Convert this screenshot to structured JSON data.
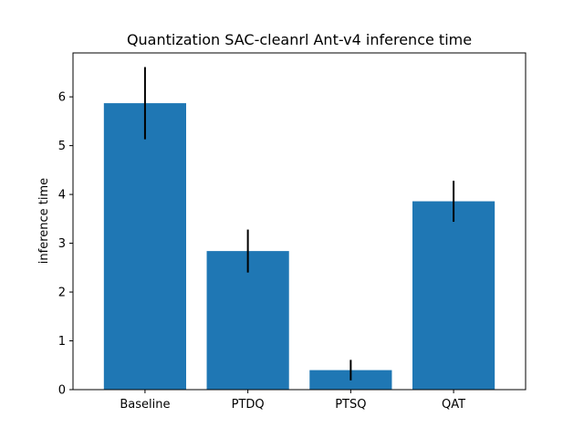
{
  "chart_data": {
    "type": "bar",
    "title": "Quantization SAC-cleanrl Ant-v4 inference time",
    "xlabel": "",
    "ylabel": "inference time",
    "categories": [
      "Baseline",
      "PTDQ",
      "PTSQ",
      "QAT"
    ],
    "values": [
      5.87,
      2.84,
      0.4,
      3.86
    ],
    "errors": [
      0.74,
      0.44,
      0.21,
      0.42
    ],
    "ylim": [
      0,
      6.9
    ],
    "yticks": [
      0,
      1,
      2,
      3,
      4,
      5,
      6
    ],
    "bar_color": "#1f77b4",
    "error_color": "#000000",
    "grid": false
  }
}
